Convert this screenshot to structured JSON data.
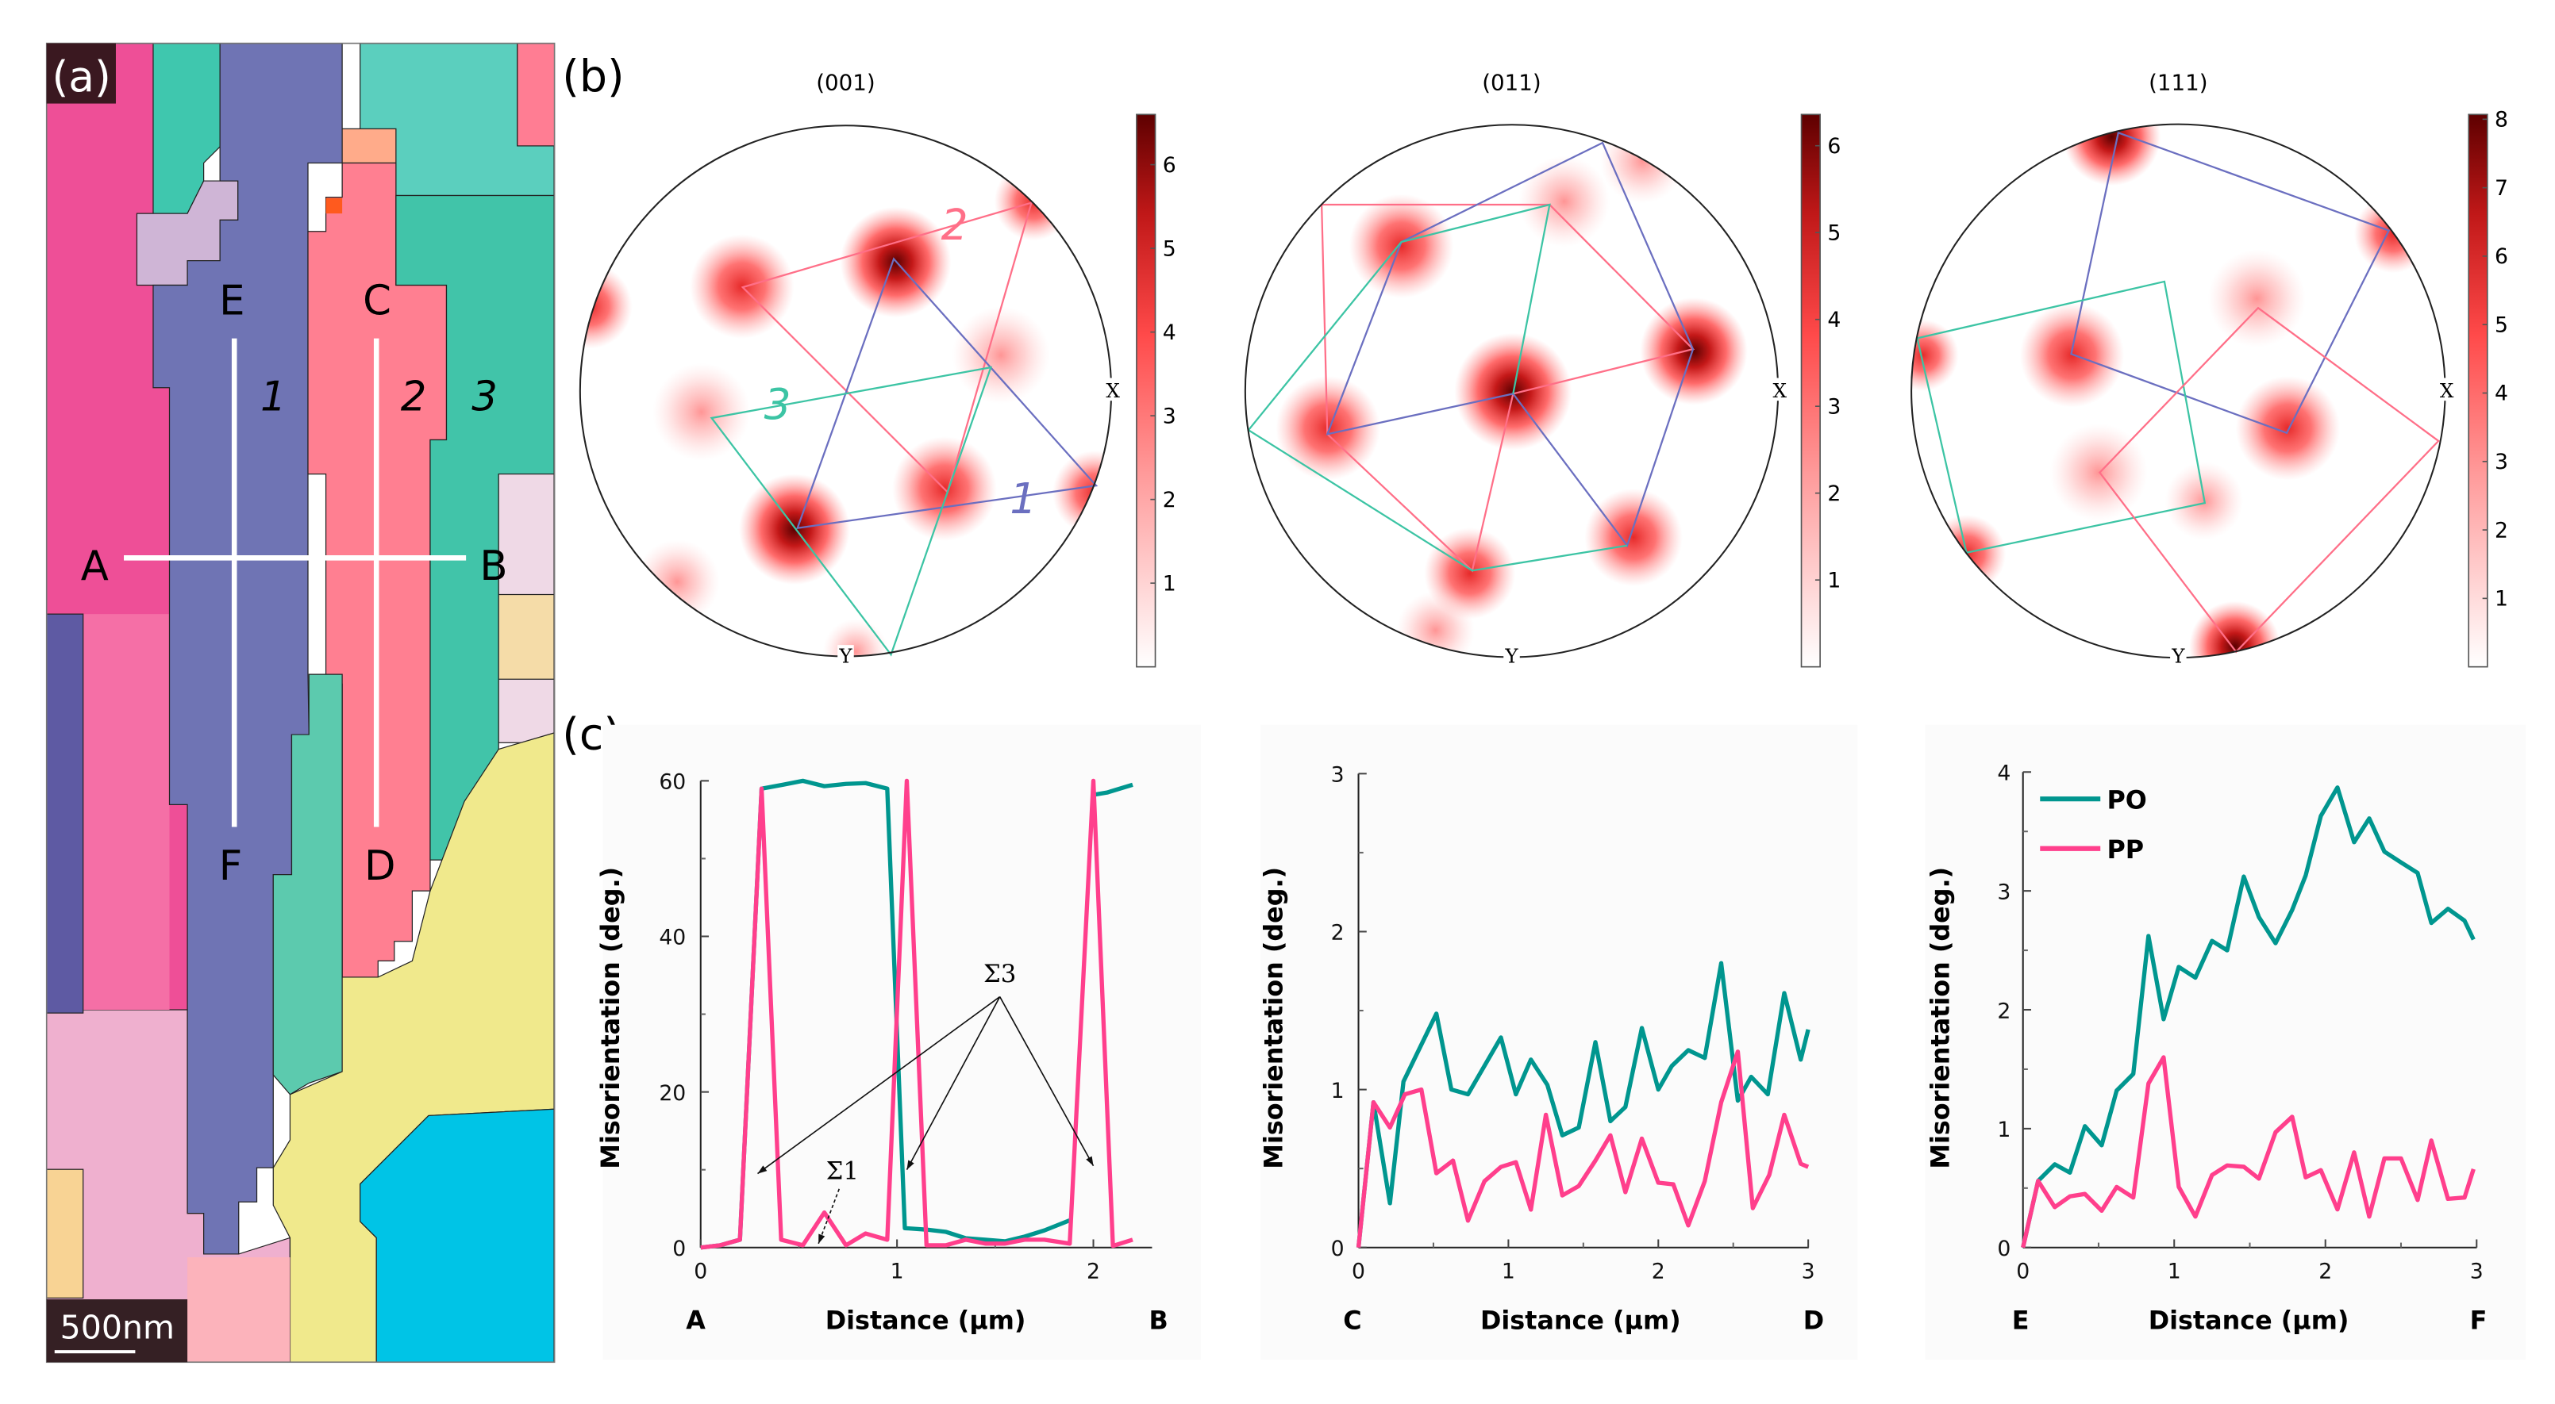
{
  "figure": {
    "panel_a_label": "(a)",
    "panel_b_label": "(b)",
    "panel_c_label": "(c)"
  },
  "ebsd_map": {
    "scale_bar": "500nm",
    "points": {
      "A": "A",
      "B": "B",
      "C": "C",
      "D": "D",
      "E": "E",
      "F": "F"
    },
    "grains": {
      "g1": "1",
      "g2": "2",
      "g3": "3"
    }
  },
  "colors": {
    "po": "#00968f",
    "pp": "#ff3f8c",
    "grain1": "#6f74b4",
    "grain2": "#ff7f91",
    "grain3": "#41c4a9",
    "pole_dark": "#6b0000",
    "pole_mid": "#ff4a4a"
  },
  "pole_figures": [
    {
      "title": "(001)",
      "x_axis": "X",
      "y_axis": "Y",
      "colorbar_ticks": [
        1,
        2,
        3,
        4,
        5,
        6
      ],
      "colorbar_max": 6.6,
      "grain_labels": {
        "pink": "2",
        "teal": "3",
        "blue": "1"
      }
    },
    {
      "title": "(011)",
      "x_axis": "X",
      "y_axis": "Y",
      "colorbar_ticks": [
        1,
        2,
        3,
        4,
        5,
        6
      ],
      "colorbar_max": 6.36
    },
    {
      "title": "(111)",
      "x_axis": "X",
      "y_axis": "Y",
      "colorbar_ticks": [
        1,
        2,
        3,
        4,
        5,
        6,
        7,
        8
      ],
      "colorbar_max": 8.07
    }
  ],
  "chart_data": [
    {
      "type": "line",
      "xlabel": "Distance (µm)",
      "ylabel": "Misorientation (deg.)",
      "start_label": "A",
      "end_label": "B",
      "xlim": [
        0,
        2.3
      ],
      "ylim": [
        0,
        60
      ],
      "xticks": [
        0,
        1,
        2
      ],
      "yticks": [
        0,
        20,
        40,
        60
      ],
      "series": [
        {
          "name": "PO",
          "color": "#00968f",
          "points": [
            [
              0,
              0
            ],
            [
              0.1,
              0.3
            ],
            [
              0.2,
              1
            ],
            [
              0.31,
              59
            ],
            [
              0.42,
              59.5
            ],
            [
              0.52,
              60
            ],
            [
              0.63,
              59.3
            ],
            [
              0.74,
              59.6
            ],
            [
              0.84,
              59.7
            ],
            [
              0.95,
              59
            ],
            [
              1.04,
              2.5
            ],
            [
              1.15,
              2.3
            ],
            [
              1.25,
              2
            ],
            [
              1.35,
              1.2
            ],
            [
              1.45,
              1
            ],
            [
              1.55,
              0.8
            ],
            [
              1.65,
              1.4
            ],
            [
              1.75,
              2.2
            ],
            [
              1.88,
              3.5
            ],
            null,
            [
              2.0,
              58.2
            ],
            [
              2.07,
              58.5
            ],
            [
              2.2,
              59.5
            ]
          ]
        },
        {
          "name": "PP",
          "color": "#ff3f8c",
          "points": [
            [
              0,
              0
            ],
            [
              0.1,
              0.3
            ],
            [
              0.2,
              1
            ],
            [
              0.31,
              59
            ],
            [
              0.41,
              1
            ],
            [
              0.52,
              0.3
            ],
            [
              0.63,
              4.5
            ],
            [
              0.74,
              0.3
            ],
            [
              0.84,
              1.8
            ],
            [
              0.95,
              1
            ],
            [
              1.05,
              60
            ],
            [
              1.15,
              0.3
            ],
            [
              1.25,
              0.3
            ],
            [
              1.35,
              1
            ],
            [
              1.45,
              0.5
            ],
            [
              1.55,
              0.5
            ],
            [
              1.65,
              1
            ],
            [
              1.75,
              1
            ],
            [
              1.88,
              0.5
            ],
            [
              2.0,
              60
            ],
            [
              2.1,
              0.2
            ],
            [
              2.2,
              1
            ]
          ]
        }
      ],
      "annotations": [
        {
          "text": "Σ3",
          "targets": [
            [
              0.29,
              9.5
            ],
            [
              1.05,
              10
            ],
            [
              2.0,
              10.5
            ]
          ]
        },
        {
          "text": "Σ1",
          "targets": [
            [
              0.6,
              0.5
            ]
          ]
        }
      ]
    },
    {
      "type": "line",
      "xlabel": "Distance (µm)",
      "ylabel": "Misorientation (deg.)",
      "start_label": "C",
      "end_label": "D",
      "xlim": [
        0,
        3
      ],
      "ylim": [
        0,
        3
      ],
      "xticks": [
        0,
        1,
        2,
        3
      ],
      "yticks": [
        0,
        1,
        2,
        3
      ],
      "series": [
        {
          "name": "PO",
          "color": "#00968f",
          "points": [
            [
              0,
              0
            ],
            [
              0.1,
              0.92
            ],
            [
              0.21,
              0.28
            ],
            [
              0.3,
              1.05
            ],
            [
              0.52,
              1.48
            ],
            [
              0.62,
              1.0
            ],
            [
              0.73,
              0.97
            ],
            [
              0.95,
              1.33
            ],
            [
              1.05,
              0.97
            ],
            [
              1.15,
              1.19
            ],
            [
              1.26,
              1.03
            ],
            [
              1.36,
              0.71
            ],
            [
              1.47,
              0.76
            ],
            [
              1.58,
              1.3
            ],
            [
              1.68,
              0.8
            ],
            [
              1.78,
              0.89
            ],
            [
              1.89,
              1.39
            ],
            [
              2.0,
              1.0
            ],
            [
              2.09,
              1.15
            ],
            [
              2.2,
              1.25
            ],
            [
              2.31,
              1.2
            ],
            [
              2.42,
              1.8
            ],
            [
              2.53,
              0.93
            ],
            [
              2.62,
              1.08
            ],
            [
              2.73,
              0.97
            ],
            [
              2.84,
              1.61
            ],
            [
              2.95,
              1.19
            ],
            [
              3.0,
              1.38
            ]
          ]
        },
        {
          "name": "PP",
          "color": "#ff3f8c",
          "points": [
            [
              0,
              0
            ],
            [
              0.1,
              0.92
            ],
            [
              0.21,
              0.76
            ],
            [
              0.31,
              0.97
            ],
            [
              0.42,
              1.0
            ],
            [
              0.52,
              0.47
            ],
            [
              0.63,
              0.55
            ],
            [
              0.73,
              0.17
            ],
            [
              0.84,
              0.42
            ],
            [
              0.95,
              0.51
            ],
            [
              1.05,
              0.54
            ],
            [
              1.15,
              0.24
            ],
            [
              1.25,
              0.84
            ],
            [
              1.36,
              0.33
            ],
            [
              1.47,
              0.39
            ],
            [
              1.58,
              0.55
            ],
            [
              1.68,
              0.71
            ],
            [
              1.78,
              0.35
            ],
            [
              1.89,
              0.69
            ],
            [
              2.0,
              0.41
            ],
            [
              2.1,
              0.4
            ],
            [
              2.2,
              0.14
            ],
            [
              2.31,
              0.42
            ],
            [
              2.42,
              0.92
            ],
            [
              2.53,
              1.24
            ],
            [
              2.63,
              0.25
            ],
            [
              2.74,
              0.46
            ],
            [
              2.84,
              0.84
            ],
            [
              2.95,
              0.53
            ],
            [
              3.0,
              0.51
            ]
          ]
        }
      ]
    },
    {
      "type": "line",
      "xlabel": "Distance (µm)",
      "ylabel": "Misorientation (deg.)",
      "start_label": "E",
      "end_label": "F",
      "xlim": [
        0,
        3
      ],
      "ylim": [
        0,
        4
      ],
      "xticks": [
        0,
        1,
        2,
        3
      ],
      "yticks": [
        0,
        1,
        2,
        3,
        4
      ],
      "legend": {
        "placement": "top-left",
        "entries": [
          "PO",
          "PP"
        ]
      },
      "series": [
        {
          "name": "PO",
          "color": "#00968f",
          "points": [
            [
              0,
              0
            ],
            [
              0.1,
              0.56
            ],
            [
              0.21,
              0.7
            ],
            [
              0.31,
              0.63
            ],
            [
              0.41,
              1.02
            ],
            [
              0.52,
              0.86
            ],
            [
              0.62,
              1.32
            ],
            [
              0.73,
              1.46
            ],
            [
              0.83,
              2.62
            ],
            [
              0.93,
              1.92
            ],
            [
              1.03,
              2.36
            ],
            [
              1.14,
              2.27
            ],
            [
              1.25,
              2.58
            ],
            [
              1.35,
              2.5
            ],
            [
              1.46,
              3.12
            ],
            [
              1.56,
              2.78
            ],
            [
              1.67,
              2.56
            ],
            [
              1.78,
              2.84
            ],
            [
              1.87,
              3.13
            ],
            [
              1.97,
              3.63
            ],
            [
              2.08,
              3.87
            ],
            [
              2.19,
              3.41
            ],
            [
              2.29,
              3.61
            ],
            [
              2.39,
              3.33
            ],
            [
              2.5,
              3.24
            ],
            [
              2.61,
              3.15
            ],
            [
              2.7,
              2.73
            ],
            [
              2.81,
              2.85
            ],
            [
              2.92,
              2.75
            ],
            [
              2.98,
              2.59
            ]
          ]
        },
        {
          "name": "PP",
          "color": "#ff3f8c",
          "points": [
            [
              0,
              0
            ],
            [
              0.1,
              0.56
            ],
            [
              0.21,
              0.34
            ],
            [
              0.31,
              0.43
            ],
            [
              0.41,
              0.45
            ],
            [
              0.52,
              0.31
            ],
            [
              0.62,
              0.51
            ],
            [
              0.73,
              0.42
            ],
            [
              0.83,
              1.38
            ],
            [
              0.93,
              1.6
            ],
            [
              1.03,
              0.51
            ],
            [
              1.14,
              0.26
            ],
            [
              1.25,
              0.61
            ],
            [
              1.35,
              0.69
            ],
            [
              1.46,
              0.68
            ],
            [
              1.56,
              0.58
            ],
            [
              1.67,
              0.97
            ],
            [
              1.78,
              1.1
            ],
            [
              1.87,
              0.59
            ],
            [
              1.97,
              0.65
            ],
            [
              2.08,
              0.32
            ],
            [
              2.19,
              0.8
            ],
            [
              2.29,
              0.26
            ],
            [
              2.39,
              0.75
            ],
            [
              2.5,
              0.75
            ],
            [
              2.61,
              0.4
            ],
            [
              2.7,
              0.9
            ],
            [
              2.81,
              0.41
            ],
            [
              2.92,
              0.42
            ],
            [
              2.98,
              0.66
            ]
          ]
        }
      ]
    }
  ]
}
